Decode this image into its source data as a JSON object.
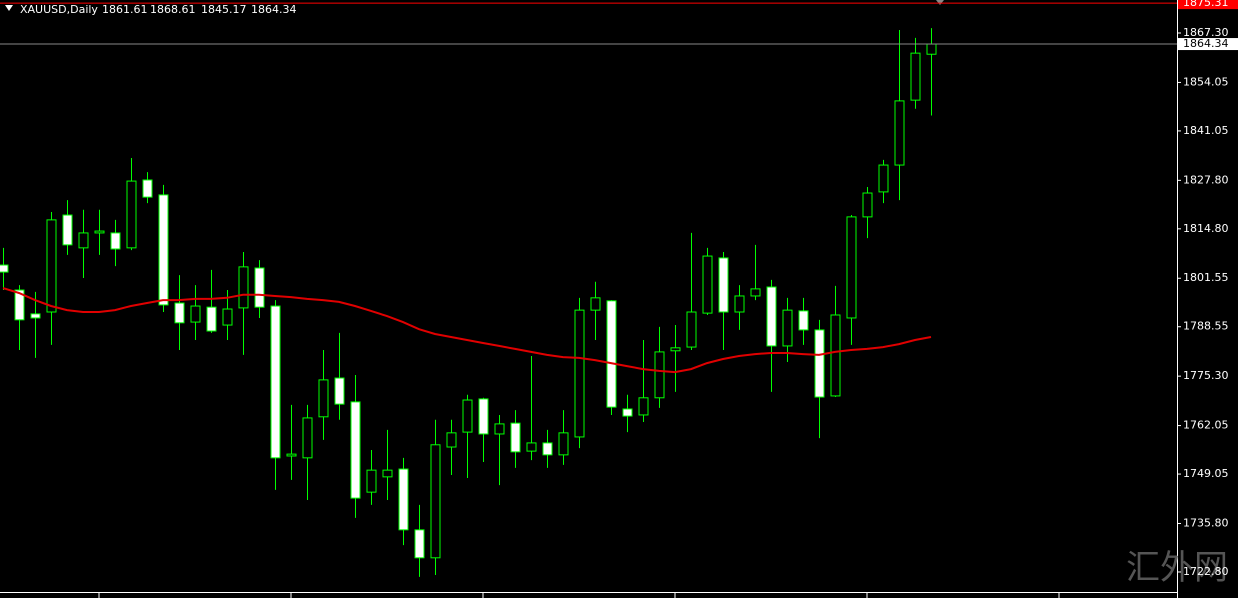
{
  "chart_data": {
    "type": "candlestick",
    "title": "XAUUSD,Daily",
    "bull_color": "#000000",
    "bear_color": "#ffffff",
    "wick_color": "#00ff00",
    "open": [
      1805.1,
      1798.4,
      1792.0,
      1792.5,
      1818.5,
      1809.7,
      1813.7,
      1813.7,
      1809.7,
      1827.9,
      1823.9,
      1794.9,
      1789.8,
      1793.8,
      1789.0,
      1793.6,
      1804.3,
      1794.1,
      1753.9,
      1753.4,
      1764.4,
      1774.8,
      1768.4,
      1744.2,
      1748.3,
      1750.4,
      1734.1,
      1726.6,
      1756.3,
      1760.3,
      1769.2,
      1759.8,
      1762.7,
      1755.2,
      1757.4,
      1754.2,
      1759.0,
      1793.0,
      1795.5,
      1766.5,
      1764.9,
      1769.5,
      1782.1,
      1783.1,
      1792.2,
      1807.0,
      1792.5,
      1796.8,
      1799.2,
      1783.4,
      1792.8,
      1787.7,
      1770.0,
      1790.9,
      1818.0,
      1824.7,
      1831.9,
      1849.3,
      1861.61
    ],
    "high": [
      1809.7,
      1799.7,
      1797.9,
      1819.3,
      1822.5,
      1819.9,
      1819.9,
      1817.2,
      1833.8,
      1830.0,
      1826.6,
      1802.4,
      1799.7,
      1803.8,
      1798.4,
      1808.6,
      1806.4,
      1795.7,
      1767.6,
      1767.6,
      1782.3,
      1786.9,
      1775.6,
      1755.5,
      1760.9,
      1753.4,
      1740.8,
      1763.6,
      1763.6,
      1770.3,
      1769.5,
      1764.9,
      1766.2,
      1780.7,
      1760.9,
      1766.2,
      1796.3,
      1800.6,
      1795.7,
      1770.3,
      1785.0,
      1788.5,
      1789.0,
      1813.7,
      1809.7,
      1808.6,
      1799.7,
      1810.5,
      1801.1,
      1796.3,
      1796.3,
      1790.4,
      1799.5,
      1818.5,
      1826.0,
      1833.3,
      1868.1,
      1866.0,
      1868.61
    ],
    "low": [
      1798.4,
      1782.3,
      1780.2,
      1783.7,
      1807.8,
      1801.6,
      1807.8,
      1804.8,
      1809.1,
      1821.7,
      1792.5,
      1782.3,
      1785.0,
      1786.9,
      1785.0,
      1781.0,
      1790.9,
      1744.8,
      1747.5,
      1742.1,
      1758.2,
      1763.6,
      1737.3,
      1740.8,
      1742.1,
      1730.0,
      1721.5,
      1722.0,
      1748.8,
      1748.0,
      1752.3,
      1746.1,
      1750.7,
      1752.8,
      1750.7,
      1751.5,
      1756.0,
      1785.0,
      1764.9,
      1760.3,
      1763.0,
      1766.8,
      1771.1,
      1782.3,
      1791.7,
      1782.3,
      1787.7,
      1795.7,
      1771.1,
      1779.1,
      1783.7,
      1758.7,
      1769.7,
      1783.7,
      1812.3,
      1821.7,
      1822.5,
      1847.0,
      1845.17
    ],
    "close": [
      1803.2,
      1790.4,
      1790.9,
      1817.2,
      1810.5,
      1813.7,
      1814.2,
      1809.4,
      1827.6,
      1823.3,
      1794.4,
      1789.6,
      1794.1,
      1787.4,
      1793.3,
      1804.6,
      1793.8,
      1753.4,
      1754.4,
      1764.1,
      1774.3,
      1767.8,
      1742.6,
      1750.1,
      1750.1,
      1734.1,
      1726.6,
      1756.9,
      1760.1,
      1768.9,
      1759.8,
      1762.5,
      1755.0,
      1757.4,
      1754.2,
      1760.1,
      1793.0,
      1796.3,
      1767.0,
      1764.6,
      1769.5,
      1781.8,
      1782.9,
      1792.5,
      1807.5,
      1792.5,
      1796.8,
      1798.7,
      1783.4,
      1793.0,
      1787.7,
      1769.7,
      1791.7,
      1818.0,
      1824.4,
      1831.9,
      1849.1,
      1861.9,
      1864.34
    ],
    "ma": {
      "color": "#e00000",
      "values": [
        1798.9,
        1797.6,
        1795.7,
        1794.1,
        1793.0,
        1792.5,
        1792.5,
        1793.0,
        1794.1,
        1794.9,
        1795.7,
        1795.7,
        1796.0,
        1796.0,
        1796.3,
        1797.1,
        1797.1,
        1796.8,
        1796.5,
        1796.0,
        1795.7,
        1795.2,
        1794.1,
        1792.8,
        1791.4,
        1789.8,
        1787.9,
        1786.6,
        1785.8,
        1785.0,
        1784.2,
        1783.4,
        1782.6,
        1781.8,
        1781.0,
        1780.4,
        1780.2,
        1779.6,
        1778.8,
        1778.0,
        1777.2,
        1776.7,
        1776.4,
        1777.2,
        1778.8,
        1779.9,
        1780.7,
        1781.2,
        1781.5,
        1781.5,
        1781.2,
        1781.0,
        1781.8,
        1782.3,
        1782.6,
        1783.1,
        1783.9,
        1785.0,
        1785.8
      ]
    },
    "hline": {
      "value": 1875.31,
      "color": "#ff0000"
    },
    "ylim": [
      1717.43,
      1876.15
    ],
    "yticks": [
      {
        "value": 1867.3,
        "label": "1867.30"
      },
      1854.05,
      1841.05,
      {
        "value": 1827.8,
        "label": "1827.80"
      },
      {
        "value": 1814.8,
        "label": "1814.80"
      },
      1801.55,
      1788.55,
      {
        "value": 1775.3,
        "label": "1775.30"
      },
      1762.05,
      1749.05,
      {
        "value": 1735.8,
        "label": "1735.80"
      },
      {
        "value": 1722.8,
        "label": "1722.80"
      }
    ],
    "watermark": "汇外网"
  }
}
